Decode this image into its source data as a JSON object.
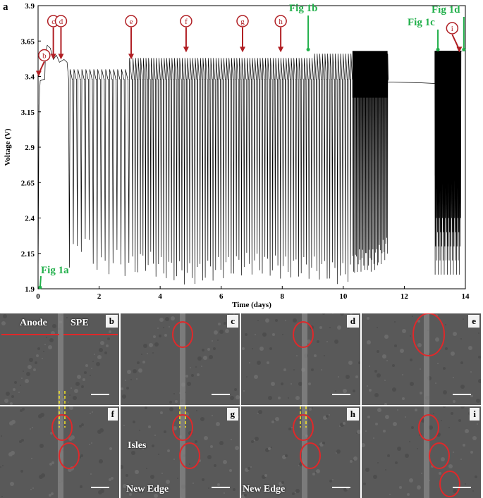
{
  "figure_label": "a",
  "chart_data": {
    "type": "line",
    "xlabel": "Time (days)",
    "ylabel": "Voltage (V)",
    "xlim": [
      0,
      14
    ],
    "ylim": [
      1.9,
      3.9
    ],
    "xticks": [
      "0",
      "2",
      "4",
      "6",
      "8",
      "10",
      "12",
      "14"
    ],
    "yticks": [
      "1.9",
      "2.15",
      "2.4",
      "2.65",
      "2.9",
      "3.15",
      "3.4",
      "3.65",
      "3.9"
    ],
    "series": [
      {
        "x": [
          0,
          0.05,
          0.1,
          0.2,
          0.25,
          0.35,
          0.5,
          0.6,
          0.7,
          0.85,
          1.0,
          1.3,
          1.6,
          2.0,
          2.5,
          3.0,
          3.5,
          4.0,
          5.0,
          6.0,
          7.0,
          8.0,
          9.0,
          10.0,
          10.5,
          11.0,
          11.45,
          11.5,
          12.0,
          12.5,
          13.0,
          13.3,
          13.6,
          13.8,
          13.9
        ],
        "y": [
          1.95,
          3.38,
          3.39,
          3.4,
          3.58,
          3.62,
          3.55,
          3.53,
          3.52,
          3.5,
          2.05,
          2.25,
          2.2,
          2.05,
          2.1,
          2.05,
          2.1,
          2.05,
          2.0,
          2.05,
          2.08,
          2.05,
          2.05,
          2.0,
          2.1,
          2.1,
          2.2,
          3.36,
          3.36,
          3.35,
          3.34,
          2.0,
          2.0,
          1.98,
          3.57
        ]
      }
    ],
    "annotations": {
      "red": [
        {
          "label": "b",
          "x": 0.02,
          "y": 3.4
        },
        {
          "label": "c",
          "x": 0.5,
          "y": 3.52
        },
        {
          "label": "d",
          "x": 0.75,
          "y": 3.52
        },
        {
          "label": "e",
          "x": 3.05,
          "y": 3.52
        },
        {
          "label": "f",
          "x": 4.85,
          "y": 3.57
        },
        {
          "label": "g",
          "x": 6.7,
          "y": 3.57
        },
        {
          "label": "h",
          "x": 7.95,
          "y": 3.57
        },
        {
          "label": "i",
          "x": 13.8,
          "y": 3.57
        }
      ],
      "green": [
        {
          "label": "Fig 1a",
          "x": 0.02,
          "y": 1.9
        },
        {
          "label": "Fig 1b",
          "x": 8.85,
          "y": 3.57
        },
        {
          "label": "Fig 1c",
          "x": 13.1,
          "y": 3.57
        },
        {
          "label": "Fig 1d",
          "x": 13.95,
          "y": 3.57
        }
      ]
    }
  },
  "sem_panels": [
    {
      "label": "b",
      "annotations": [
        "Anode",
        "SPE"
      ]
    },
    {
      "label": "c",
      "annotations": []
    },
    {
      "label": "d",
      "annotations": []
    },
    {
      "label": "e",
      "annotations": []
    },
    {
      "label": "f",
      "annotations": []
    },
    {
      "label": "g",
      "annotations": [
        "Isles",
        "New Edge"
      ]
    },
    {
      "label": "h",
      "annotations": [
        "New Edge"
      ]
    },
    {
      "label": "i",
      "annotations": []
    }
  ],
  "colors": {
    "marker_red": "#b01e23",
    "marker_green": "#22b04b",
    "trace": "#000000",
    "sem_highlight": "#e0282a",
    "sem_dashed": "#f5e625"
  }
}
